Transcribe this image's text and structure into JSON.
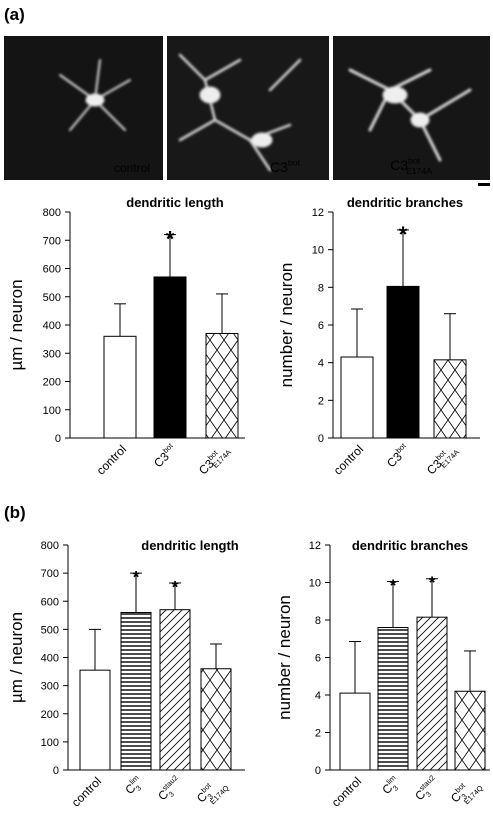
{
  "panels": [
    "(a)",
    "(b)"
  ],
  "images": [
    {
      "main": "control"
    },
    {
      "main": "C3",
      "sup": "bot"
    },
    {
      "main": "C3",
      "sup": "bot",
      "sub": "E174A"
    }
  ],
  "chart_data": [
    {
      "type": "bar",
      "title": "dendritic length",
      "y_label": "µm / neuron",
      "categories": [
        {
          "main": "control"
        },
        {
          "main": "C3",
          "sup": "bot"
        },
        {
          "main": "C3",
          "sup": "bot",
          "sub": "E174A"
        }
      ],
      "values": [
        360,
        570,
        370
      ],
      "errors": [
        115,
        150,
        140
      ],
      "significance": [
        null,
        "*",
        null
      ],
      "fills": [
        "white",
        "black",
        "crosshatch"
      ],
      "ylim": [
        0,
        800
      ],
      "yticks": [
        0,
        100,
        200,
        300,
        400,
        500,
        600,
        700,
        800
      ]
    },
    {
      "type": "bar",
      "title": "dendritic branches",
      "y_label": "number / neuron",
      "categories": [
        {
          "main": "control"
        },
        {
          "main": "C3",
          "sup": "bot"
        },
        {
          "main": "C3",
          "sup": "bot",
          "sub": "E174A"
        }
      ],
      "values": [
        4.3,
        8.05,
        4.15
      ],
      "errors": [
        2.55,
        3.0,
        2.45
      ],
      "significance": [
        null,
        "*",
        null
      ],
      "fills": [
        "white",
        "black",
        "crosshatch"
      ],
      "ylim": [
        0,
        12
      ],
      "yticks": [
        0,
        2,
        4,
        6,
        8,
        10,
        12
      ]
    },
    {
      "type": "bar",
      "title": "dendritic length",
      "y_label": "µm / neuron",
      "categories": [
        {
          "main": "control"
        },
        {
          "main": "C",
          "sub": "3",
          "sup": "lim"
        },
        {
          "main": "C",
          "sub": "3",
          "sup": "stau2"
        },
        {
          "main": "C",
          "sub": "3",
          "sup": "bot",
          "note": "E174Q"
        }
      ],
      "values": [
        355,
        560,
        570,
        360
      ],
      "errors": [
        145,
        140,
        95,
        88
      ],
      "significance": [
        null,
        "*",
        "*",
        null
      ],
      "fills": [
        "white",
        "horizontal",
        "diagonal",
        "crosshatch"
      ],
      "ylim": [
        0,
        800
      ],
      "yticks": [
        0,
        100,
        200,
        300,
        400,
        500,
        600,
        700,
        800
      ]
    },
    {
      "type": "bar",
      "title": "dendritic branches",
      "y_label": "number / neuron",
      "categories": [
        {
          "main": "control"
        },
        {
          "main": "C",
          "sub": "3",
          "sup": "lim"
        },
        {
          "main": "C",
          "sub": "3",
          "sup": "stau2"
        },
        {
          "main": "C",
          "sub": "3",
          "sup": "bot",
          "note": "E174Q"
        }
      ],
      "values": [
        4.1,
        7.6,
        8.15,
        4.2
      ],
      "errors": [
        2.75,
        2.45,
        2.05,
        2.15
      ],
      "significance": [
        null,
        "*",
        "*",
        null
      ],
      "fills": [
        "white",
        "horizontal",
        "diagonal",
        "crosshatch"
      ],
      "ylim": [
        0,
        12
      ],
      "yticks": [
        0,
        2,
        4,
        6,
        8,
        10,
        12
      ]
    }
  ]
}
